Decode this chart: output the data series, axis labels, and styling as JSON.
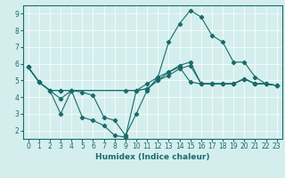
{
  "xlabel": "Humidex (Indice chaleur)",
  "xlim": [
    -0.5,
    23.5
  ],
  "ylim": [
    1.5,
    9.5
  ],
  "yticks": [
    2,
    3,
    4,
    5,
    6,
    7,
    8,
    9
  ],
  "xticks": [
    0,
    1,
    2,
    3,
    4,
    5,
    6,
    7,
    8,
    9,
    10,
    11,
    12,
    13,
    14,
    15,
    16,
    17,
    18,
    19,
    20,
    21,
    22,
    23
  ],
  "bg_color": "#d4eeee",
  "line_color": "#1a6b6b",
  "line1_x": [
    0,
    1,
    2,
    3,
    4,
    9,
    10,
    11,
    12,
    13,
    14,
    15,
    16,
    17,
    18,
    19,
    20,
    21,
    22,
    23
  ],
  "line1_y": [
    5.8,
    4.9,
    4.4,
    4.4,
    4.4,
    4.4,
    4.4,
    4.8,
    5.2,
    5.5,
    5.8,
    4.9,
    4.8,
    4.8,
    4.8,
    4.8,
    5.1,
    4.8,
    4.8,
    4.7
  ],
  "line2_x": [
    0,
    1,
    2,
    3,
    4,
    5,
    6,
    7,
    8,
    9,
    10,
    11,
    12,
    13,
    14,
    15,
    16,
    17,
    18,
    19,
    20,
    21,
    22,
    23
  ],
  "line2_y": [
    5.8,
    4.9,
    4.4,
    3.9,
    4.4,
    4.3,
    4.1,
    2.8,
    2.6,
    1.7,
    3.0,
    4.4,
    5.2,
    7.3,
    8.4,
    9.2,
    8.8,
    7.7,
    7.3,
    6.1,
    6.1,
    5.2,
    4.8,
    4.7
  ],
  "line3_x": [
    0,
    1,
    2,
    3,
    4,
    5,
    6,
    7,
    8,
    9,
    10,
    11,
    12,
    13,
    14,
    15,
    16,
    17,
    18,
    19,
    20,
    21,
    22,
    23
  ],
  "line3_y": [
    5.8,
    4.9,
    4.4,
    3.0,
    4.4,
    2.8,
    2.6,
    2.3,
    1.7,
    1.6,
    4.4,
    4.5,
    5.0,
    5.5,
    5.9,
    6.1,
    4.8,
    4.8,
    4.8,
    4.8,
    5.1,
    4.8,
    4.8,
    4.7
  ],
  "line4_x": [
    0,
    1,
    2,
    3,
    4,
    10,
    11,
    12,
    13,
    14,
    15,
    16,
    17,
    18,
    19,
    20,
    21,
    22,
    23
  ],
  "line4_y": [
    5.8,
    4.9,
    4.4,
    4.4,
    4.4,
    4.4,
    4.5,
    5.0,
    5.3,
    5.7,
    5.9,
    4.8,
    4.8,
    4.8,
    4.8,
    5.1,
    4.8,
    4.8,
    4.7
  ]
}
